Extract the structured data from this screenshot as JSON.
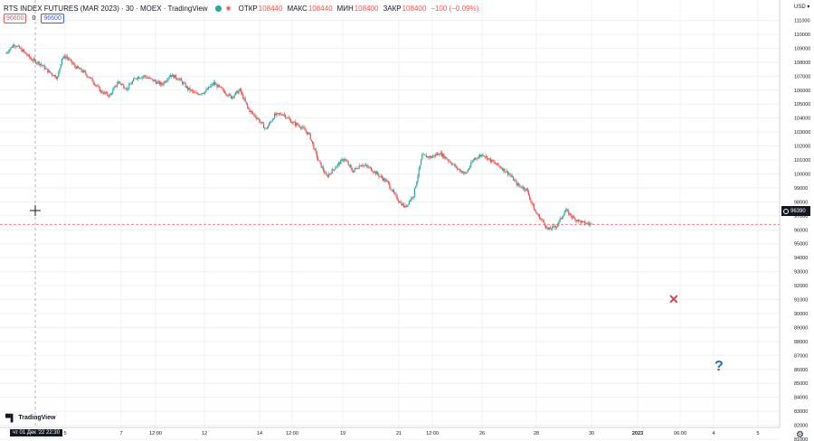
{
  "header": {
    "title": "RTS INDEX FUTURES (MAR 2023) · 30 · MOEX · TradingView",
    "ohlc": [
      {
        "label": "ОТКР",
        "value": "108440"
      },
      {
        "label": "МАКС",
        "value": "108440"
      },
      {
        "label": "МИН",
        "value": "108400"
      },
      {
        "label": "ЗАКР",
        "value": "108400"
      }
    ],
    "change": "−100 (−0.09%)",
    "status_color": "#22ab94"
  },
  "order": {
    "sell": "96600",
    "spread": "0",
    "buy": "96600"
  },
  "currency": "USD",
  "current_price": "96390",
  "crosshair_time": "чт 01 Дек '22  22:30",
  "logo_text": "TradingView",
  "colors": {
    "up": "#26a69a",
    "down": "#ef5350",
    "grid": "#eef0f3",
    "crosshair": "#9598a1",
    "price_line": "#ef5350"
  },
  "chart_data": {
    "type": "candlestick",
    "y_axis_labels": [
      "111000",
      "110000",
      "109000",
      "108000",
      "107000",
      "106000",
      "105000",
      "104000",
      "103000",
      "102000",
      "101000",
      "100000",
      "99000",
      "98000",
      "97000",
      "96000",
      "95000",
      "94000",
      "93000",
      "92000",
      "91000",
      "90000",
      "89000",
      "88000",
      "87000",
      "86000",
      "85000",
      "84000",
      "83000",
      "82000",
      "81000"
    ],
    "x_axis_labels": [
      "5",
      "7",
      "12:00",
      "12",
      "14",
      "12:00",
      "19",
      "21",
      "12:00",
      "26",
      "28",
      "30",
      "2023",
      "06:00",
      "4",
      "5"
    ],
    "ylim": [
      80500,
      111800
    ],
    "grid": true,
    "path": [
      [
        0,
        108600
      ],
      [
        2,
        109300
      ],
      [
        4,
        108800
      ],
      [
        6,
        108200
      ],
      [
        8,
        107900
      ],
      [
        10,
        107300
      ],
      [
        12,
        106900
      ],
      [
        13,
        108300
      ],
      [
        14,
        108400
      ],
      [
        16,
        107700
      ],
      [
        18,
        107300
      ],
      [
        20,
        106700
      ],
      [
        22,
        105900
      ],
      [
        24,
        105600
      ],
      [
        26,
        106600
      ],
      [
        28,
        106100
      ],
      [
        30,
        106900
      ],
      [
        32,
        107000
      ],
      [
        34,
        106700
      ],
      [
        36,
        106400
      ],
      [
        38,
        107100
      ],
      [
        40,
        106800
      ],
      [
        42,
        106100
      ],
      [
        44,
        105700
      ],
      [
        46,
        105900
      ],
      [
        48,
        106500
      ],
      [
        50,
        106000
      ],
      [
        52,
        105500
      ],
      [
        54,
        106000
      ],
      [
        56,
        104600
      ],
      [
        58,
        104000
      ],
      [
        60,
        103200
      ],
      [
        62,
        104200
      ],
      [
        64,
        104300
      ],
      [
        66,
        103700
      ],
      [
        68,
        103400
      ],
      [
        70,
        102800
      ],
      [
        72,
        101000
      ],
      [
        74,
        99800
      ],
      [
        76,
        100500
      ],
      [
        78,
        101100
      ],
      [
        80,
        100200
      ],
      [
        82,
        100700
      ],
      [
        84,
        100400
      ],
      [
        86,
        99900
      ],
      [
        88,
        99400
      ],
      [
        90,
        98300
      ],
      [
        92,
        97600
      ],
      [
        94,
        98500
      ],
      [
        96,
        101300
      ],
      [
        98,
        101200
      ],
      [
        100,
        101500
      ],
      [
        102,
        101000
      ],
      [
        104,
        100400
      ],
      [
        106,
        100000
      ],
      [
        108,
        101100
      ],
      [
        110,
        101400
      ],
      [
        112,
        100900
      ],
      [
        114,
        100500
      ],
      [
        116,
        100000
      ],
      [
        118,
        99200
      ],
      [
        120,
        98900
      ],
      [
        122,
        97300
      ],
      [
        124,
        96500
      ],
      [
        125,
        96000
      ],
      [
        127,
        96300
      ],
      [
        129,
        97400
      ],
      [
        131,
        96800
      ],
      [
        133,
        96500
      ],
      [
        135,
        96390
      ]
    ],
    "current_price": 96390
  }
}
